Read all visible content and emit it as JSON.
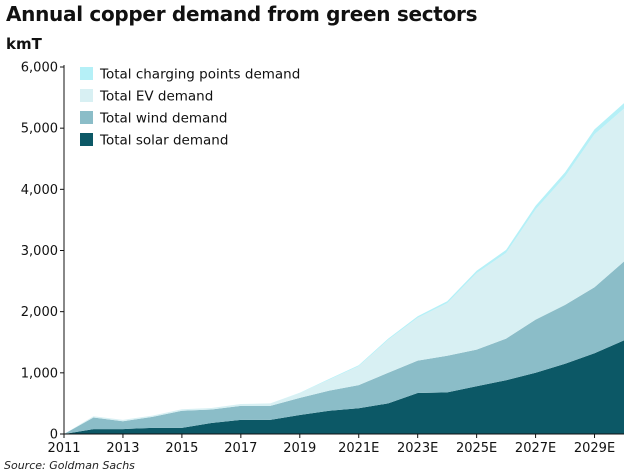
{
  "title": "Annual copper demand from green sectors",
  "unit_label": "kmT",
  "source": "Source: Goldman Sachs",
  "chart_data": {
    "type": "area",
    "stacked": true,
    "title": "Annual copper demand from green sectors",
    "ylabel": "kmT",
    "xlabel": "",
    "ylim": [
      0,
      6000
    ],
    "y_ticks": [
      0,
      1000,
      2000,
      3000,
      4000,
      5000,
      6000
    ],
    "y_tick_labels": [
      "0",
      "1,000",
      "2,000",
      "3,000",
      "4,000",
      "5,000",
      "6,000"
    ],
    "x": [
      "2011",
      "2012",
      "2013",
      "2014",
      "2015",
      "2016",
      "2017",
      "2018",
      "2019",
      "2020",
      "2021E",
      "2022E",
      "2023E",
      "2024E",
      "2025E",
      "2026E",
      "2027E",
      "2028E",
      "2029E",
      "2030E"
    ],
    "x_tick_labels": [
      "2011",
      "2013",
      "2015",
      "2017",
      "2019",
      "2021E",
      "2023E",
      "2025E",
      "2027E",
      "2029E"
    ],
    "grid": false,
    "legend_position": "top-left",
    "series": [
      {
        "name": "Total solar demand",
        "color": "#0c5866",
        "values": [
          0,
          80,
          80,
          100,
          100,
          180,
          230,
          230,
          310,
          380,
          420,
          500,
          670,
          680,
          780,
          880,
          1000,
          1150,
          1320,
          1530
        ]
      },
      {
        "name": "Total wind demand",
        "color": "#8bbdc8",
        "values": [
          0,
          190,
          130,
          180,
          280,
          220,
          230,
          230,
          280,
          330,
          380,
          500,
          530,
          600,
          600,
          680,
          870,
          960,
          1080,
          1290
        ]
      },
      {
        "name": "Total EV demand",
        "color": "#d8f0f3",
        "values": [
          0,
          20,
          20,
          20,
          25,
          25,
          30,
          40,
          80,
          180,
          310,
          540,
          700,
          860,
          1250,
          1400,
          1800,
          2100,
          2500,
          2500
        ]
      },
      {
        "name": "Total charging points demand",
        "color": "#b5f0f7",
        "values": [
          0,
          0,
          0,
          0,
          0,
          0,
          0,
          0,
          5,
          10,
          15,
          20,
          25,
          30,
          40,
          50,
          60,
          70,
          80,
          90
        ]
      }
    ]
  }
}
